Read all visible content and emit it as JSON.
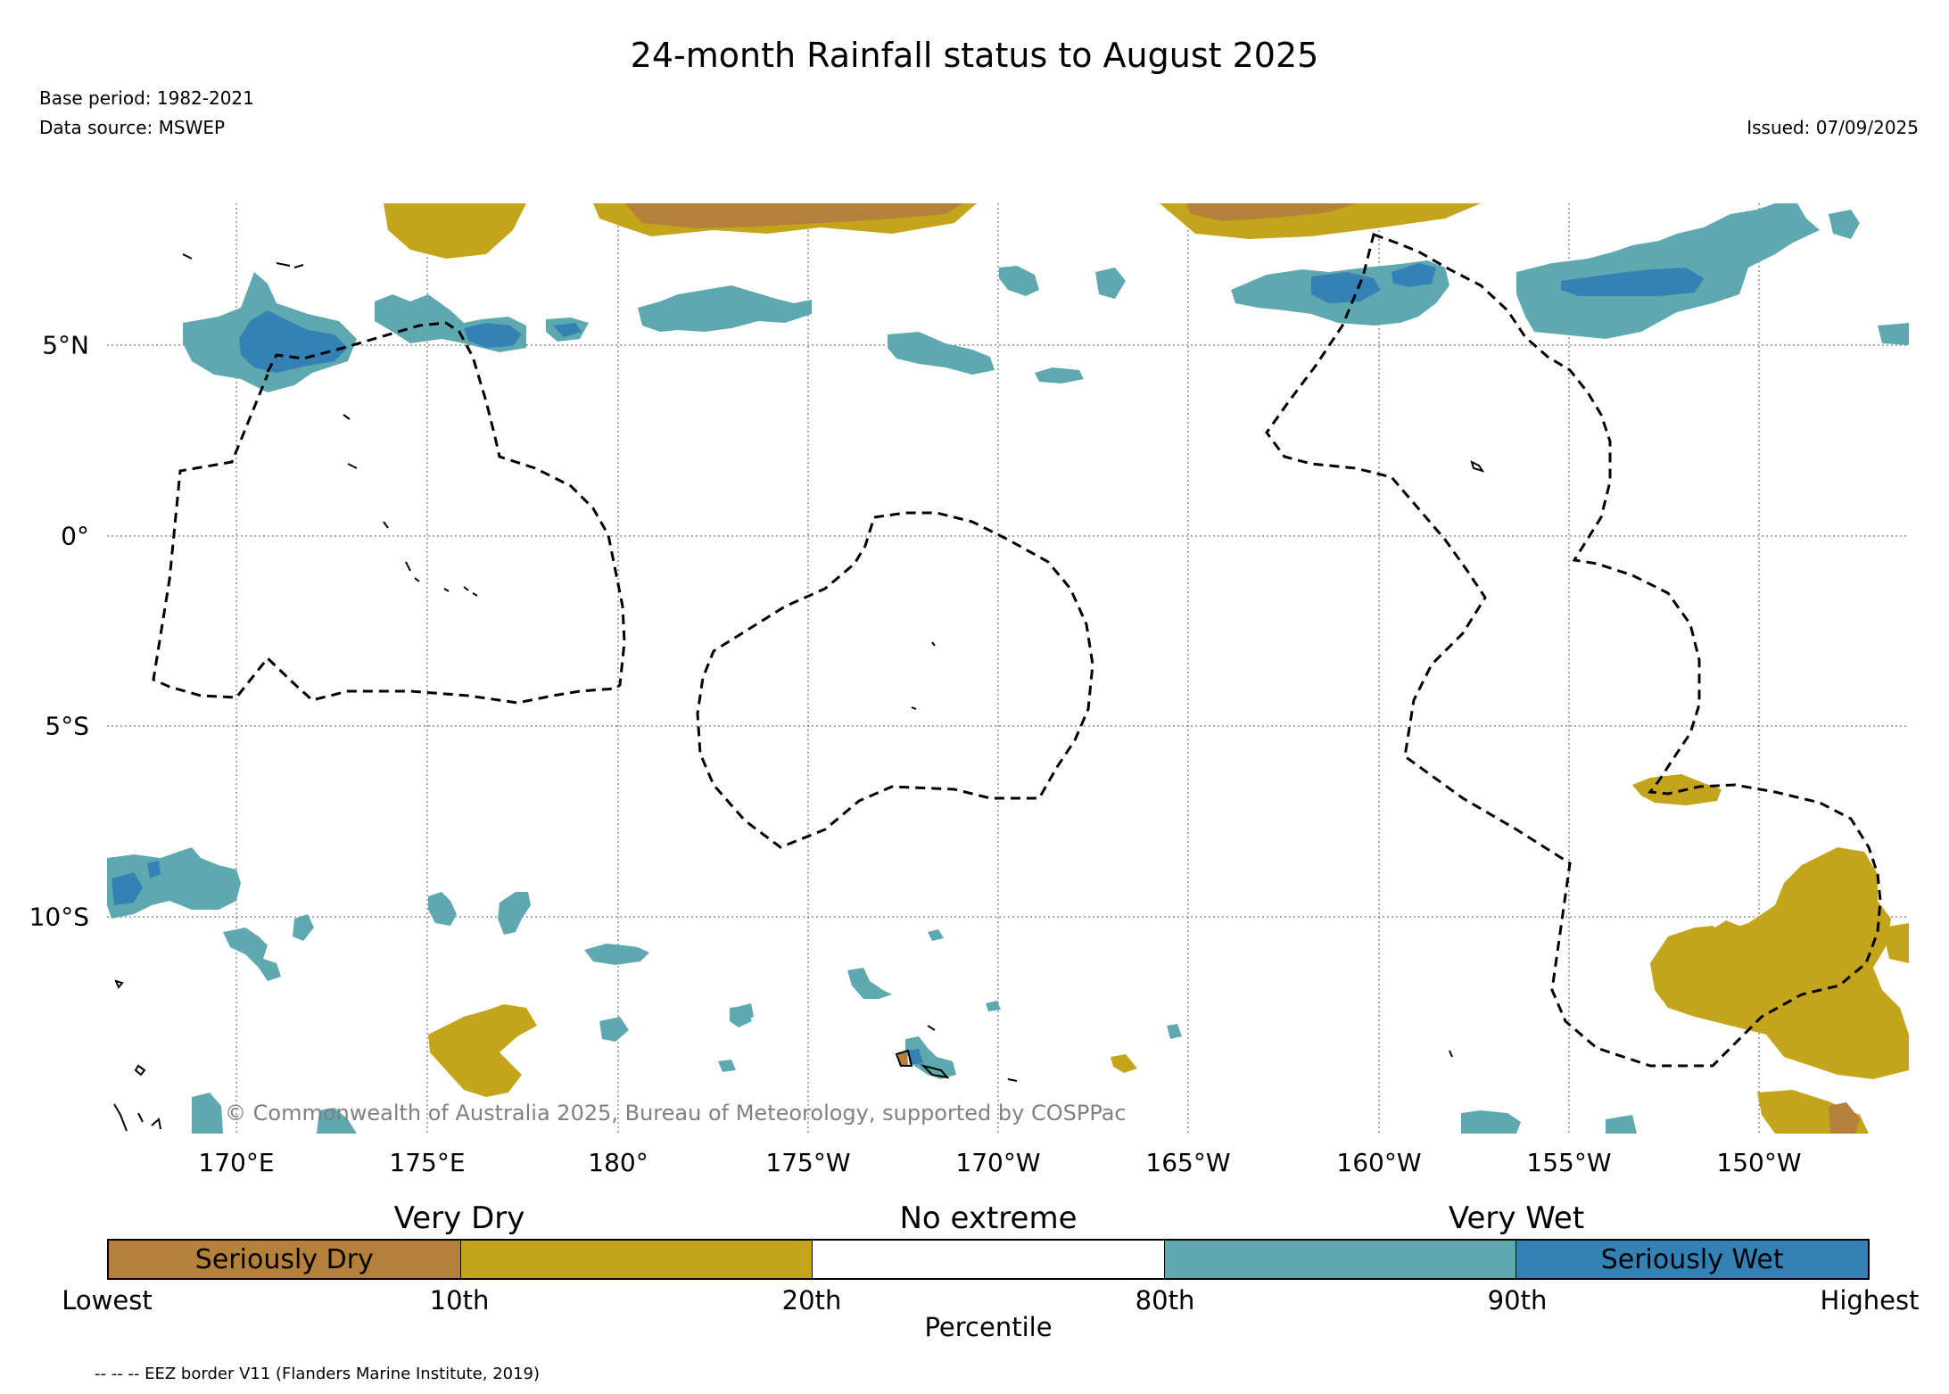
{
  "title": "24-month Rainfall status to August 2025",
  "base_period": "Base period: 1982-2021",
  "data_source": "Data source: MSWEP",
  "issued": "Issued: 07/09/2025",
  "copyright": "© Commonwealth of Australia 2025, Bureau of Meteorology, supported by COSPPac",
  "footnote": "-- -- -- EEZ border V11 (Flanders Marine Institute, 2019)",
  "map": {
    "longitude_labels": [
      "170°E",
      "175°E",
      "180°",
      "175°W",
      "170°W",
      "165°W",
      "160°W",
      "155°W",
      "150°W"
    ],
    "latitude_labels": [
      "5°N",
      "0°",
      "5°S",
      "10°S"
    ]
  },
  "legend": {
    "category_labels": [
      "Very Dry",
      "No extreme",
      "Very Wet"
    ],
    "segments": [
      {
        "label": "Seriously Dry",
        "color": "#b5803a"
      },
      {
        "label": "",
        "color": "#c4a41a"
      },
      {
        "label": "",
        "color": "#ffffff"
      },
      {
        "label": "",
        "color": "#5ea9b0"
      },
      {
        "label": "Seriously Wet",
        "color": "#3481b5"
      }
    ],
    "tick_labels": [
      "Lowest",
      "10th",
      "20th",
      "80th",
      "90th",
      "Highest"
    ],
    "axis_label": "Percentile"
  },
  "colors": {
    "seriously_dry": "#b5803a",
    "very_dry": "#c4a41a",
    "very_wet": "#5ea9b0",
    "seriously_wet": "#3481b5"
  }
}
